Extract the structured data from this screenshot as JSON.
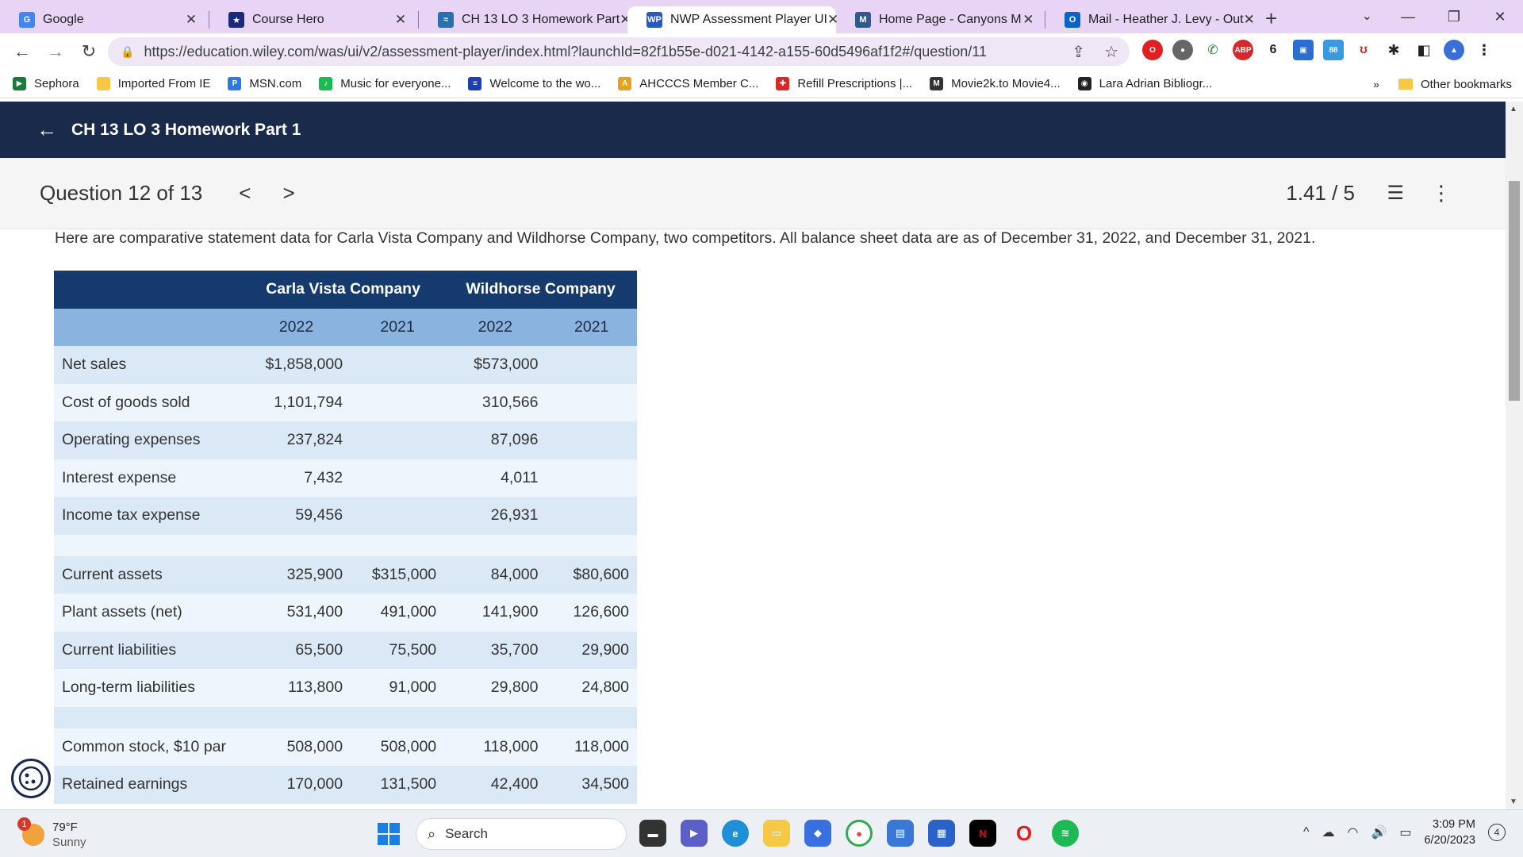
{
  "tabs": [
    {
      "title": "Google",
      "favicon": "G",
      "color": "#4285f4",
      "active": false
    },
    {
      "title": "Course Hero",
      "favicon": "★",
      "color": "#1a2a7a",
      "active": false
    },
    {
      "title": "CH 13 LO 3 Homework Part",
      "favicon": "≈",
      "color": "#2a6fb0",
      "active": false
    },
    {
      "title": "NWP Assessment Player UI",
      "favicon": "WP",
      "color": "#2a56c6",
      "active": true
    },
    {
      "title": "Home Page - Canyons M",
      "favicon": "M",
      "color": "#2f5a8a",
      "active": false
    },
    {
      "title": "Mail - Heather J. Levy - Out",
      "favicon": "O",
      "color": "#0a64c8",
      "active": false
    }
  ],
  "address_bar": {
    "url": "https://education.wiley.com/was/ui/v2/assessment-player/index.html?launchId=82f1b55e-d021-4142-a155-60d5496af1f2#/question/11"
  },
  "bookmarks": [
    {
      "label": "Sephora",
      "icon": "▶",
      "color": "#1a7a3a"
    },
    {
      "label": "Imported From IE",
      "icon": "",
      "color": "#f5c846"
    },
    {
      "label": "MSN.com",
      "icon": "P",
      "color": "#2a7ae0"
    },
    {
      "label": "Music for everyone...",
      "icon": "♪",
      "color": "#1db954"
    },
    {
      "label": "Welcome to the wo...",
      "icon": "≡",
      "color": "#1d3fb0"
    },
    {
      "label": "AHCCCS Member C...",
      "icon": "A",
      "color": "#e8a020"
    },
    {
      "label": "Refill Prescriptions |...",
      "icon": "✚",
      "color": "#d62a2a"
    },
    {
      "label": "Movie2k.to Movie4...",
      "icon": "M",
      "color": "#333333"
    },
    {
      "label": "Lara Adrian Bibliogr...",
      "icon": "◉",
      "color": "#222222"
    }
  ],
  "bookmarks_overflow": "»",
  "other_bookmarks": "Other bookmarks",
  "header": {
    "title": "CH 13 LO 3 Homework Part 1"
  },
  "question_nav": {
    "label": "Question 12 of 13",
    "prev": "<",
    "next": ">",
    "score": "1.41 / 5"
  },
  "question": {
    "intro": "Here are comparative statement data for Carla Vista Company and Wildhorse Company, two competitors. All balance sheet data are as of December 31, 2022, and December 31, 2021.",
    "companies": [
      "Carla Vista Company",
      "Wildhorse Company"
    ],
    "years": [
      "2022",
      "2021",
      "2022",
      "2021"
    ],
    "income_rows": [
      {
        "label": "Net sales",
        "values": [
          "$1,858,000",
          "",
          "$573,000",
          ""
        ]
      },
      {
        "label": "Cost of goods sold",
        "values": [
          "1,101,794",
          "",
          "310,566",
          ""
        ]
      },
      {
        "label": "Operating expenses",
        "values": [
          "237,824",
          "",
          "87,096",
          ""
        ]
      },
      {
        "label": "Interest expense",
        "values": [
          "7,432",
          "",
          "4,011",
          ""
        ]
      },
      {
        "label": "Income tax expense",
        "values": [
          "59,456",
          "",
          "26,931",
          ""
        ]
      }
    ],
    "balance_rows": [
      {
        "label": "Current assets",
        "values": [
          "325,900",
          "$315,000",
          "84,000",
          "$80,600"
        ]
      },
      {
        "label": "Plant assets (net)",
        "values": [
          "531,400",
          "491,000",
          "141,900",
          "126,600"
        ]
      },
      {
        "label": "Current liabilities",
        "values": [
          "65,500",
          "75,500",
          "35,700",
          "29,900"
        ]
      },
      {
        "label": "Long-term liabilities",
        "values": [
          "113,800",
          "91,000",
          "29,800",
          "24,800"
        ]
      }
    ],
    "equity_rows": [
      {
        "label": "Common stock, $10 par",
        "values": [
          "508,000",
          "508,000",
          "118,000",
          "118,000"
        ]
      },
      {
        "label": "Retained earnings",
        "values": [
          "170,000",
          "131,500",
          "42,400",
          "34,500"
        ]
      }
    ]
  },
  "taskbar": {
    "weather_temp": "79°F",
    "weather_desc": "Sunny",
    "weather_badge": "1",
    "search_label": "Search",
    "time": "3:09 PM",
    "date": "6/20/2023",
    "notification_count": "4"
  }
}
